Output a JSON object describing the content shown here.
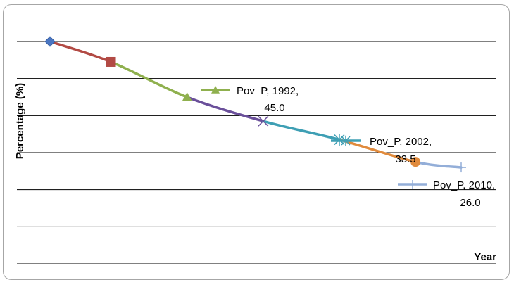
{
  "chart_data": {
    "type": "line",
    "title": "",
    "xlabel": "Year",
    "ylabel": "Percentage (%)",
    "ylim": [
      0,
      60
    ],
    "grid": true,
    "legend": "none",
    "series": [
      {
        "points": [
          {
            "x": "1983",
            "y": 60.0
          },
          {
            "x": "1987",
            "y": 54.5
          },
          {
            "x": "1992",
            "y": 45.0
          },
          {
            "x": "1997",
            "y": 38.5
          },
          {
            "x": "2002",
            "y": 33.5
          },
          {
            "x": "2007",
            "y": 27.5
          },
          {
            "x": "2010",
            "y": 26.0
          }
        ],
        "segment_colors": [
          "#b24a44",
          "#8fb04e",
          "#6a4f9a",
          "#3e9fb4",
          "#e08a3c",
          "#93aed8"
        ],
        "marker_colors": [
          "#4a76c2",
          "#b24a44",
          "#8fb04e",
          "#6a4f9a",
          "#3e9fb4",
          "#e08a3c",
          "#93aed8"
        ],
        "markers": [
          "diamond",
          "square",
          "triangle",
          "x",
          "star",
          "circle",
          "plus"
        ]
      }
    ],
    "annotations": [
      {
        "point_index": 2,
        "line1": "Pov_P, 1992,",
        "line2": "45.0",
        "color": "#8fb04e",
        "marker": "triangle"
      },
      {
        "point_index": 4,
        "line1": "Pov_P, 2002,",
        "line2": "33.5",
        "color": "#3e9fb4",
        "marker": "star"
      },
      {
        "point_index": 6,
        "line1": "Pov_P, 2010,",
        "line2": "26.0",
        "color": "#93aed8",
        "marker": "plus"
      }
    ]
  }
}
